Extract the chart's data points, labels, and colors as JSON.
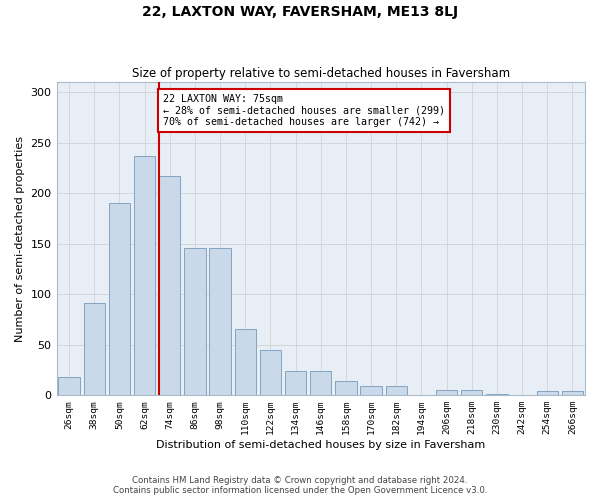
{
  "title": "22, LAXTON WAY, FAVERSHAM, ME13 8LJ",
  "subtitle": "Size of property relative to semi-detached houses in Faversham",
  "xlabel": "Distribution of semi-detached houses by size in Faversham",
  "ylabel": "Number of semi-detached properties",
  "footer_line1": "Contains HM Land Registry data © Crown copyright and database right 2024.",
  "footer_line2": "Contains public sector information licensed under the Open Government Licence v3.0.",
  "property_label": "22 LAXTON WAY: 75sqm",
  "pct_smaller": 28,
  "count_smaller": 299,
  "pct_larger": 70,
  "count_larger": 742,
  "bin_labels": [
    "26sqm",
    "38sqm",
    "50sqm",
    "62sqm",
    "74sqm",
    "86sqm",
    "98sqm",
    "110sqm",
    "122sqm",
    "134sqm",
    "146sqm",
    "158sqm",
    "170sqm",
    "182sqm",
    "194sqm",
    "206sqm",
    "218sqm",
    "230sqm",
    "242sqm",
    "254sqm",
    "266sqm"
  ],
  "bar_values": [
    18,
    91,
    190,
    237,
    217,
    146,
    146,
    65,
    45,
    24,
    24,
    14,
    9,
    9,
    0,
    5,
    5,
    1,
    0,
    4,
    4
  ],
  "bar_color": "#c9d9ea",
  "bar_edge_color": "#7799bb",
  "vline_bar_index": 4,
  "vline_color": "#cc0000",
  "ylim": [
    0,
    310
  ],
  "yticks": [
    0,
    50,
    100,
    150,
    200,
    250,
    300
  ],
  "grid_color": "#cccccc",
  "bg_color": "#e8eef5"
}
